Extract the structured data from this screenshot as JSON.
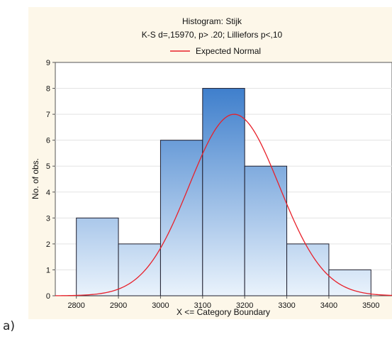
{
  "panel_label": "a)",
  "chart_data": {
    "type": "bar",
    "title": "Histogram: Stijk",
    "subtitle": "K-S d=,15970, p> .20; Lilliefors p<,10",
    "legend": [
      {
        "label": "Expected Normal",
        "color": "#e8202a"
      }
    ],
    "legend_position": "top-center",
    "xlabel": "X <= Category Boundary",
    "ylabel": "No. of obs.",
    "xlim": [
      2750,
      3550
    ],
    "ylim": [
      0,
      9
    ],
    "x_ticks": [
      2800,
      2900,
      3000,
      3100,
      3200,
      3300,
      3400,
      3500
    ],
    "y_ticks": [
      0,
      1,
      2,
      3,
      4,
      5,
      6,
      7,
      8,
      9
    ],
    "grid": "horizontal",
    "bins": [
      {
        "from": 2800,
        "to": 2900,
        "count": 3
      },
      {
        "from": 2900,
        "to": 3000,
        "count": 2
      },
      {
        "from": 3000,
        "to": 3100,
        "count": 6
      },
      {
        "from": 3100,
        "to": 3200,
        "count": 8
      },
      {
        "from": 3200,
        "to": 3300,
        "count": 5
      },
      {
        "from": 3300,
        "to": 3400,
        "count": 2
      },
      {
        "from": 3400,
        "to": 3500,
        "count": 1
      }
    ],
    "expected_normal": {
      "mean": 3175,
      "peak": 7.0,
      "sd": 107
    },
    "colors": {
      "bar_top": "#3f7fcc",
      "bar_bottom": "#eaf3fc",
      "bar_edge": "#1f1f2f",
      "curve": "#e8202a",
      "background": "#fdf7e9"
    }
  }
}
